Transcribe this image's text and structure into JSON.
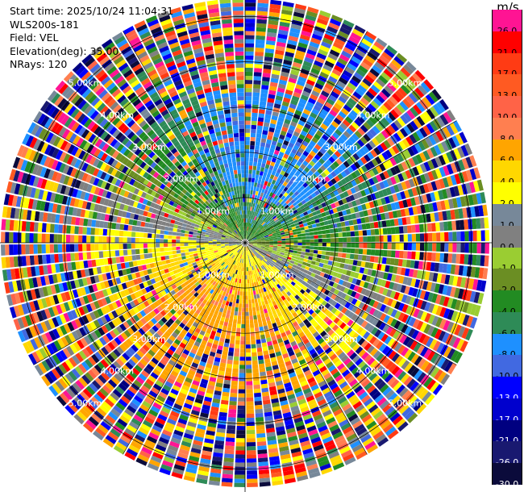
{
  "info": {
    "start_time": "Start time: 2025/10/24 11:04:31",
    "instrument": "WLS200s-181",
    "field": "Field: VEL",
    "elevation": "Elevation(deg): 35.00",
    "nrays": "NRays: 120"
  },
  "colorbar": {
    "unit": "m/s",
    "levels": [
      {
        "label": "26.0",
        "color": "#ff1493",
        "text": "#000000"
      },
      {
        "label": "21.0",
        "color": "#ff0000",
        "text": "#000000"
      },
      {
        "label": "17.0",
        "color": "#ff3b14",
        "text": "#000000"
      },
      {
        "label": "13.0",
        "color": "#ff5a22",
        "text": "#000000"
      },
      {
        "label": "10.0",
        "color": "#ff6347",
        "text": "#000000"
      },
      {
        "label": "8.0",
        "color": "#ff7f50",
        "text": "#000000"
      },
      {
        "label": "6.0",
        "color": "#ffa500",
        "text": "#000000"
      },
      {
        "label": "4.0",
        "color": "#ffd700",
        "text": "#000000"
      },
      {
        "label": "2.0",
        "color": "#ffff00",
        "text": "#000000"
      },
      {
        "label": "1.0",
        "color": "#778899",
        "text": "#000000"
      },
      {
        "label": "0.0",
        "color": "#808080",
        "text": "#000000"
      },
      {
        "label": "-1.0",
        "color": "#9acd32",
        "text": "#000000"
      },
      {
        "label": "-2.0",
        "color": "#6b8e23",
        "text": "#000000"
      },
      {
        "label": "-4.0",
        "color": "#228b22",
        "text": "#000000"
      },
      {
        "label": "-6.0",
        "color": "#2e8b57",
        "text": "#000000"
      },
      {
        "label": "-8.0",
        "color": "#1e90ff",
        "text": "#000000"
      },
      {
        "label": "-10.0",
        "color": "#4169e1",
        "text": "#000000"
      },
      {
        "label": "-13.0",
        "color": "#0000ff",
        "text": "#ffffff"
      },
      {
        "label": "-17.0",
        "color": "#0000cd",
        "text": "#ffffff"
      },
      {
        "label": "-21.0",
        "color": "#000080",
        "text": "#ffffff"
      },
      {
        "label": "-26.0",
        "color": "#191970",
        "text": "#ffffff"
      },
      {
        "label": "-30.0",
        "color": "#0b0b3b",
        "text": "#ffffff"
      }
    ]
  },
  "chart_data": {
    "type": "heatmap",
    "projection": "polar (PPI)",
    "field": "VEL",
    "unit": "m/s",
    "nrays": 120,
    "elevation_deg": 35.0,
    "value_range": [
      -30.0,
      26.0
    ],
    "range_rings_km": [
      1.0,
      2.0,
      3.0,
      4.0,
      5.0
    ],
    "ring_labels": [
      "1.00km",
      "2.00km",
      "3.00km",
      "4.00km",
      "5.00km"
    ],
    "max_range_km": 5.4,
    "grid": true
  }
}
